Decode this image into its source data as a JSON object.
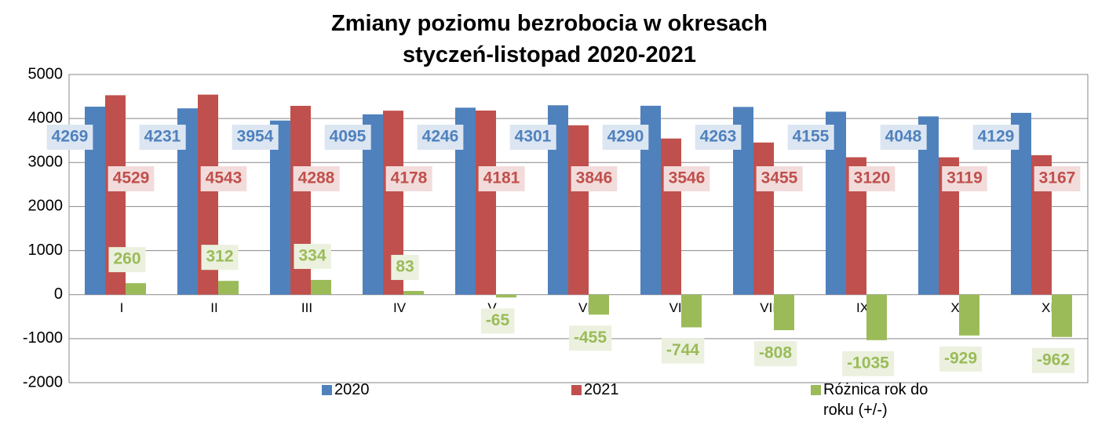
{
  "chart_data": {
    "type": "bar",
    "title": "Zmiany poziomu bezrobocia w okresach styczeń-listopad 2020-2021",
    "categories": [
      "I",
      "II",
      "III",
      "IV",
      "V",
      "VI",
      "VII",
      "VIII",
      "IX",
      "X",
      "XI"
    ],
    "series": [
      {
        "name": "2020",
        "color": "#4f81bd",
        "values": [
          4269,
          4231,
          3954,
          4095,
          4246,
          4301,
          4290,
          4263,
          4155,
          4048,
          4129
        ]
      },
      {
        "name": "2021",
        "color": "#c0504d",
        "values": [
          4529,
          4543,
          4288,
          4178,
          4181,
          3846,
          3546,
          3455,
          3120,
          3119,
          3167
        ]
      },
      {
        "name": "Różnica rok do roku (+/-)",
        "color": "#9bbb59",
        "values": [
          260,
          312,
          334,
          83,
          -65,
          -455,
          -744,
          -808,
          -1035,
          -929,
          -962
        ]
      }
    ],
    "ylim": [
      -2000,
      5000
    ],
    "yticks": [
      -2000,
      -1000,
      0,
      1000,
      2000,
      3000,
      4000,
      5000
    ],
    "grid": true,
    "legend": "bottom"
  }
}
